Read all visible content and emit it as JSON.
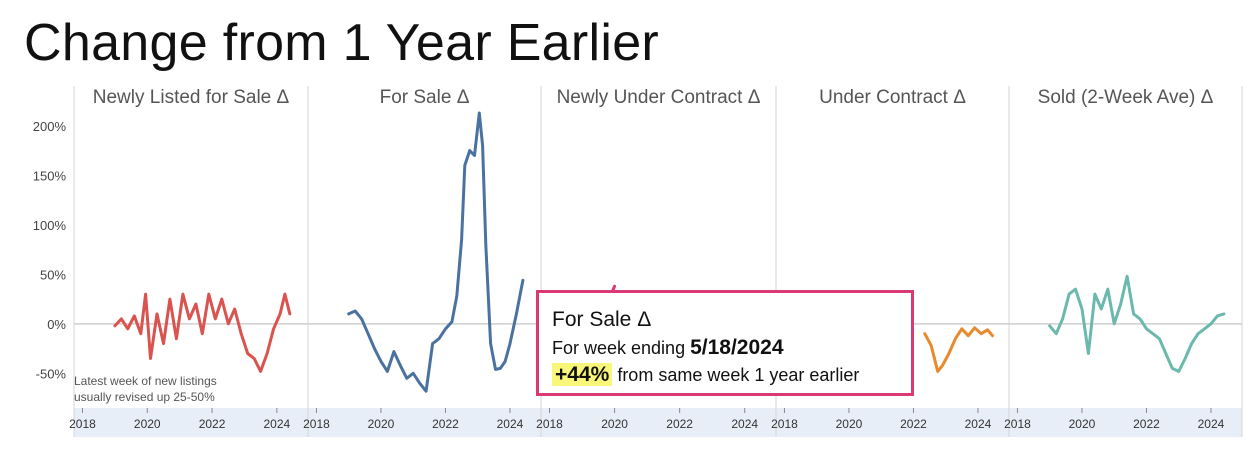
{
  "title": "Change from 1 Year Earlier",
  "note": [
    "Latest week of new listings",
    "usually revised up 25-50%"
  ],
  "tooltip": {
    "title": "For Sale Δ",
    "week_prefix": "For week ending",
    "week_date": "5/18/2024",
    "value": "+44%",
    "suffix": "from same week 1 year earlier"
  },
  "chart_data": {
    "type": "line",
    "ylim": [
      -85,
      218
    ],
    "yticks": [
      200,
      150,
      100,
      50,
      0,
      -50
    ],
    "ytick_labels": [
      "200%",
      "150%",
      "100%",
      "50%",
      "0%",
      "-50%"
    ],
    "xlim": [
      2017.8,
      2024.9
    ],
    "xticks": [
      2018,
      2020,
      2022,
      2024
    ],
    "xtick_labels": [
      "2018",
      "2020",
      "2022",
      "2024"
    ],
    "grid": false,
    "panels": [
      {
        "name": "Newly Listed for Sale Δ",
        "color": "#d9534f",
        "x": [
          2019.0,
          2019.2,
          2019.4,
          2019.6,
          2019.8,
          2019.95,
          2020.1,
          2020.3,
          2020.5,
          2020.7,
          2020.9,
          2021.1,
          2021.3,
          2021.5,
          2021.7,
          2021.9,
          2022.1,
          2022.3,
          2022.5,
          2022.7,
          2022.9,
          2023.1,
          2023.3,
          2023.5,
          2023.7,
          2023.9,
          2024.1,
          2024.25,
          2024.4
        ],
        "y": [
          -2,
          5,
          -5,
          8,
          -10,
          30,
          -35,
          10,
          -20,
          25,
          -15,
          30,
          5,
          20,
          -10,
          30,
          5,
          25,
          0,
          15,
          -10,
          -30,
          -35,
          -48,
          -30,
          -5,
          10,
          30,
          10
        ]
      },
      {
        "name": "For Sale Δ",
        "color": "#4a72a0",
        "x": [
          2019.0,
          2019.2,
          2019.4,
          2019.6,
          2019.8,
          2020.0,
          2020.2,
          2020.4,
          2020.6,
          2020.8,
          2021.0,
          2021.2,
          2021.4,
          2021.6,
          2021.8,
          2022.0,
          2022.2,
          2022.35,
          2022.5,
          2022.6,
          2022.75,
          2022.9,
          2023.05,
          2023.15,
          2023.25,
          2023.4,
          2023.55,
          2023.7,
          2023.85,
          2024.0,
          2024.2,
          2024.4
        ],
        "y": [
          10,
          13,
          5,
          -10,
          -25,
          -38,
          -48,
          -28,
          -42,
          -55,
          -50,
          -60,
          -68,
          -20,
          -15,
          -5,
          2,
          28,
          85,
          160,
          175,
          170,
          213,
          180,
          80,
          -20,
          -46,
          -45,
          -38,
          -20,
          10,
          44
        ]
      },
      {
        "name": "Newly Under Contract Δ",
        "color": "#d93a73",
        "x": [
          2019.9,
          2020.0
        ],
        "y": [
          30,
          38
        ]
      },
      {
        "name": "Under Contract Δ",
        "color": "#e8892b",
        "x": [
          2022.35,
          2022.55,
          2022.75,
          2022.9,
          2023.1,
          2023.3,
          2023.5,
          2023.7,
          2023.9,
          2024.1,
          2024.3,
          2024.45
        ],
        "y": [
          -10,
          -22,
          -48,
          -42,
          -30,
          -15,
          -5,
          -12,
          -4,
          -10,
          -6,
          -12
        ]
      },
      {
        "name": "Sold (2-Week Ave) Δ",
        "color": "#6bb8ad",
        "x": [
          2019.0,
          2019.2,
          2019.4,
          2019.6,
          2019.8,
          2020.0,
          2020.2,
          2020.4,
          2020.6,
          2020.8,
          2021.0,
          2021.2,
          2021.4,
          2021.6,
          2021.8,
          2022.0,
          2022.2,
          2022.4,
          2022.6,
          2022.8,
          2023.0,
          2023.2,
          2023.4,
          2023.6,
          2023.8,
          2024.0,
          2024.2,
          2024.4
        ],
        "y": [
          -2,
          -10,
          5,
          30,
          35,
          15,
          -30,
          30,
          15,
          35,
          0,
          20,
          48,
          10,
          5,
          -5,
          -10,
          -15,
          -30,
          -45,
          -48,
          -35,
          -20,
          -10,
          -5,
          0,
          8,
          10
        ]
      }
    ]
  }
}
